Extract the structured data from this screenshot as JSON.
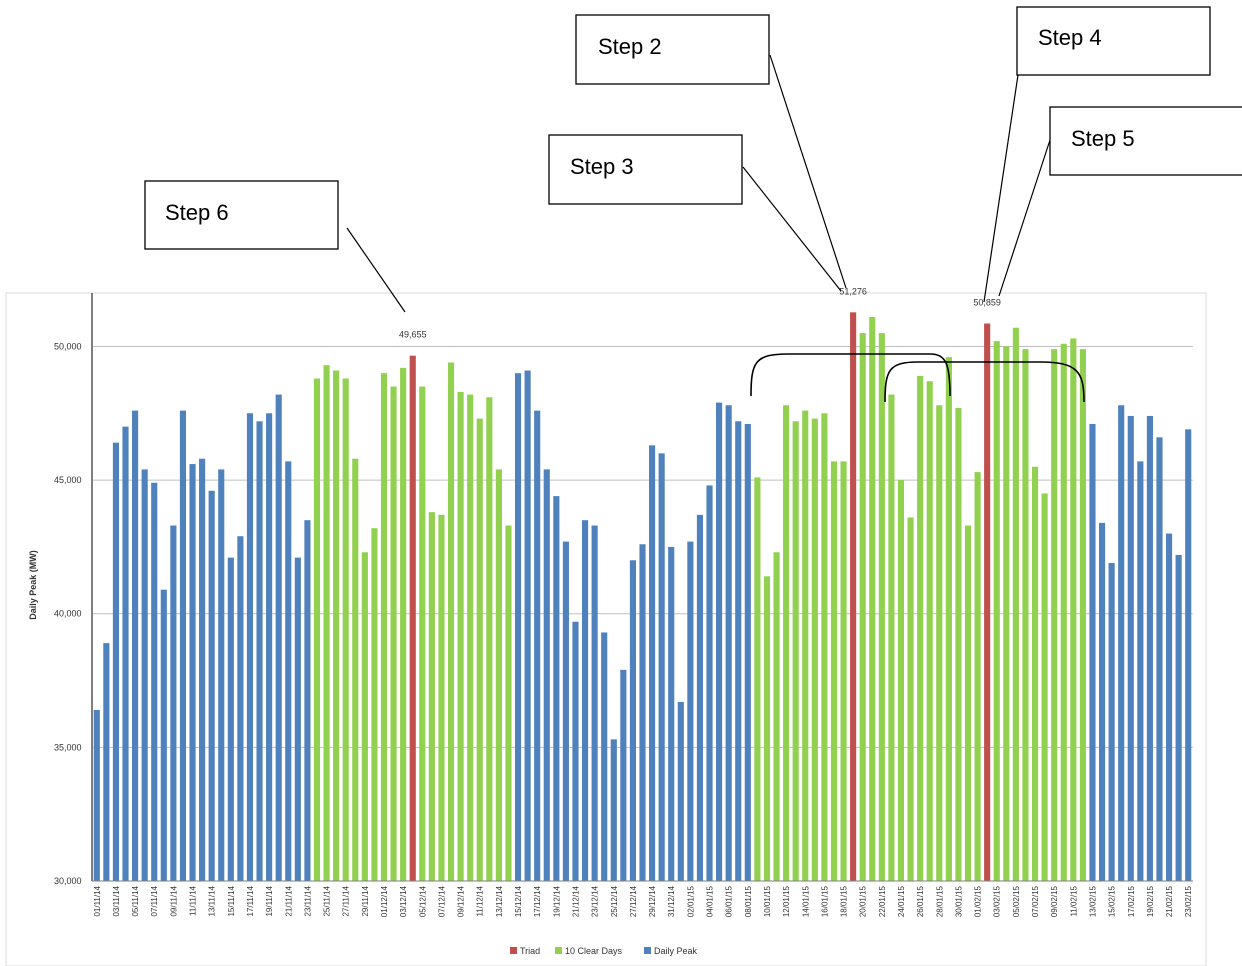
{
  "colors": {
    "triad": "#c0504d",
    "clear": "#92d050",
    "peak": "#4f81bd",
    "grid": "#bfbfbf",
    "axis": "#7f7f7f"
  },
  "chart_data": {
    "type": "bar",
    "title": "",
    "xlabel": "",
    "ylabel": "Daily Peak (MW)",
    "ylim": [
      30000,
      52000
    ],
    "yticks": [
      30000,
      35000,
      40000,
      45000,
      50000
    ],
    "ytick_labels": [
      "30,000",
      "35,000",
      "40,000",
      "45,000",
      "50,000"
    ],
    "grid": true,
    "legend_position": "bottom",
    "legend": [
      {
        "name": "Triad",
        "color_key": "triad"
      },
      {
        "name": "10 Clear Days",
        "color_key": "clear"
      },
      {
        "name": "Daily Peak",
        "color_key": "peak"
      }
    ],
    "first_date": "01/11/14",
    "x_tick_labels": [
      "01/11/14",
      "03/11/14",
      "05/11/14",
      "07/11/14",
      "09/11/14",
      "11/11/14",
      "13/11/14",
      "15/11/14",
      "17/11/14",
      "19/11/14",
      "21/11/14",
      "23/11/14",
      "25/11/14",
      "27/11/14",
      "29/11/14",
      "01/12/14",
      "03/12/14",
      "05/12/14",
      "07/12/14",
      "09/12/14",
      "11/12/14",
      "13/12/14",
      "15/12/14",
      "17/12/14",
      "19/12/14",
      "21/12/14",
      "23/12/14",
      "25/12/14",
      "27/12/14",
      "29/12/14",
      "31/12/14",
      "02/01/15",
      "04/01/15",
      "06/01/15",
      "08/01/15",
      "10/01/15",
      "12/01/15",
      "14/01/15",
      "16/01/15",
      "18/01/15",
      "20/01/15",
      "22/01/15",
      "24/01/15",
      "26/01/15",
      "28/01/15",
      "30/01/15",
      "01/02/15",
      "03/02/15",
      "05/02/15",
      "07/02/15",
      "09/02/15",
      "11/02/15",
      "13/02/15",
      "15/02/15",
      "17/02/15",
      "19/02/15",
      "21/02/15",
      "23/02/15"
    ],
    "values": [
      36400,
      38900,
      46400,
      47000,
      47600,
      45400,
      44900,
      40900,
      43300,
      47600,
      45600,
      45800,
      44600,
      45400,
      42100,
      42900,
      47500,
      47200,
      47500,
      48200,
      45700,
      42100,
      43500,
      48800,
      49300,
      49100,
      48800,
      45800,
      42300,
      43200,
      49000,
      48500,
      49200,
      49655,
      48500,
      43800,
      43700,
      49400,
      48300,
      48200,
      47300,
      48100,
      45400,
      43300,
      49000,
      49100,
      47600,
      45400,
      44400,
      42700,
      39700,
      43500,
      43300,
      39300,
      35300,
      37900,
      42000,
      42600,
      46300,
      46000,
      42500,
      36700,
      42700,
      43700,
      44800,
      47900,
      47800,
      47200,
      47100,
      45100,
      41400,
      42300,
      47800,
      47200,
      47600,
      47300,
      47500,
      45700,
      45700,
      51276,
      50500,
      51100,
      50500,
      48200,
      45000,
      43600,
      48900,
      48700,
      47800,
      49600,
      47700,
      43300,
      45300,
      50859,
      50200,
      50000,
      50700,
      49900,
      45500,
      44500,
      49900,
      50100,
      50300,
      49900,
      47100,
      43400,
      41900,
      47800,
      47400,
      45700,
      47400,
      46600,
      43000,
      42200,
      46900
    ],
    "categories_kind": [
      "peak",
      "peak",
      "peak",
      "peak",
      "peak",
      "peak",
      "peak",
      "peak",
      "peak",
      "peak",
      "peak",
      "peak",
      "peak",
      "peak",
      "peak",
      "peak",
      "peak",
      "peak",
      "peak",
      "peak",
      "peak",
      "peak",
      "peak",
      "clear",
      "clear",
      "clear",
      "clear",
      "clear",
      "clear",
      "clear",
      "clear",
      "clear",
      "clear",
      "triad",
      "clear",
      "clear",
      "clear",
      "clear",
      "clear",
      "clear",
      "clear",
      "clear",
      "clear",
      "clear",
      "peak",
      "peak",
      "peak",
      "peak",
      "peak",
      "peak",
      "peak",
      "peak",
      "peak",
      "peak",
      "peak",
      "peak",
      "peak",
      "peak",
      "peak",
      "peak",
      "peak",
      "peak",
      "peak",
      "peak",
      "peak",
      "peak",
      "peak",
      "peak",
      "peak",
      "clear",
      "clear",
      "clear",
      "clear",
      "clear",
      "clear",
      "clear",
      "clear",
      "clear",
      "clear",
      "triad",
      "clear",
      "clear",
      "clear",
      "clear",
      "clear",
      "clear",
      "clear",
      "clear",
      "clear",
      "clear",
      "clear",
      "clear",
      "clear",
      "triad",
      "clear",
      "clear",
      "clear",
      "clear",
      "clear",
      "clear",
      "clear",
      "clear",
      "clear",
      "clear",
      "peak",
      "peak",
      "peak",
      "peak",
      "peak",
      "peak",
      "peak",
      "peak",
      "peak",
      "peak",
      "peak"
    ],
    "data_labels": [
      {
        "index": 33,
        "text": "49,655"
      },
      {
        "index": 79,
        "text": "51,276"
      },
      {
        "index": 93,
        "text": "50,859"
      }
    ]
  },
  "annotations": [
    {
      "id": "step-2",
      "label": "Step 2"
    },
    {
      "id": "step-3",
      "label": "Step 3"
    },
    {
      "id": "step-4",
      "label": "Step 4"
    },
    {
      "id": "step-5",
      "label": "Step 5"
    },
    {
      "id": "step-6",
      "label": "Step 6"
    }
  ]
}
